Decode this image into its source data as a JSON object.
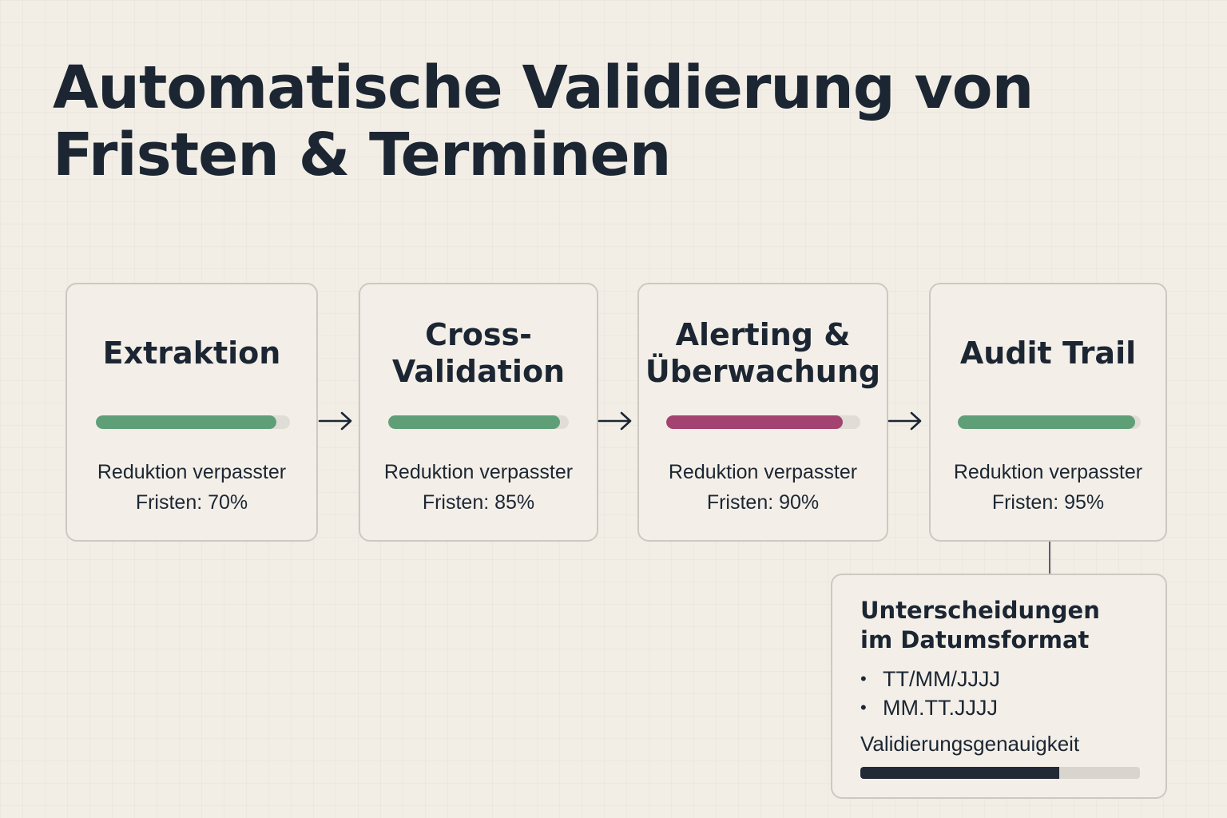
{
  "title": {
    "line1": "Automatische Validierung von",
    "line2": "Fristen & Terminen"
  },
  "stages": [
    {
      "title": "Extraktion",
      "progress": 0.93,
      "color": "#5f9f78",
      "desc_line1": "Reduktion verpasster",
      "desc_line2": "Fristen: 70%"
    },
    {
      "title": "Cross-\nValidation",
      "progress": 0.95,
      "color": "#5f9f78",
      "desc_line1": "Reduktion verpasster",
      "desc_line2": "Fristen: 85%"
    },
    {
      "title": "Alerting &\nÜberwachung",
      "progress": 0.91,
      "color": "#a3436f",
      "desc_line1": "Reduktion verpasster",
      "desc_line2": "Fristen: 90%"
    },
    {
      "title": "Audit Trail",
      "progress": 0.97,
      "color": "#5f9f78",
      "desc_line1": "Reduktion verpasster",
      "desc_line2": "Fristen: 95%"
    }
  ],
  "detail": {
    "title_line1": "Unterscheidungen",
    "title_line2": "im Datumsformat",
    "formats": [
      "TT/MM/JJJJ",
      "MM.TT.JJJJ"
    ],
    "accuracy_label": "Validierungsgenauigkeit",
    "accuracy_progress": 0.71,
    "accuracy_color": "#222a35"
  }
}
